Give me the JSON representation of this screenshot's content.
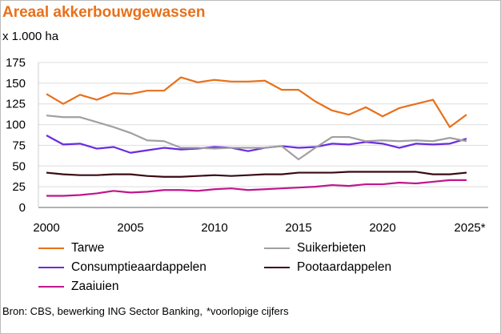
{
  "chart_data": {
    "type": "line",
    "title": "Areaal akkerbouwgewassen",
    "ylabel": "x 1.000 ha",
    "x": [
      2000,
      2001,
      2002,
      2003,
      2004,
      2005,
      2006,
      2007,
      2008,
      2009,
      2010,
      2011,
      2012,
      2013,
      2014,
      2015,
      2016,
      2017,
      2018,
      2019,
      2020,
      2021,
      2022,
      2023,
      2024,
      2025
    ],
    "xticks": [
      "2000",
      "2005",
      "2010",
      "2015",
      "2020",
      "2025*"
    ],
    "yticks": [
      "0",
      "25",
      "50",
      "75",
      "100",
      "125",
      "150",
      "175"
    ],
    "ylim": [
      0,
      175
    ],
    "grid": true,
    "legend_position": "bottom",
    "series": [
      {
        "name": "Tarwe",
        "color": "#E8701A",
        "values": [
          137,
          125,
          136,
          130,
          138,
          137,
          141,
          141,
          157,
          151,
          154,
          152,
          152,
          153,
          142,
          142,
          128,
          117,
          112,
          121,
          110,
          120,
          125,
          130,
          97,
          112
        ]
      },
      {
        "name": "Suikerbieten",
        "color": "#A0A0A0",
        "values": [
          111,
          109,
          109,
          103,
          97,
          90,
          81,
          80,
          72,
          72,
          71,
          72,
          72,
          72,
          74,
          58,
          72,
          85,
          85,
          80,
          81,
          80,
          81,
          80,
          84,
          80
        ]
      },
      {
        "name": "Consumptieaardappelen",
        "color": "#6A2BE0",
        "values": [
          87,
          76,
          77,
          71,
          73,
          66,
          69,
          72,
          70,
          71,
          73,
          72,
          68,
          72,
          74,
          72,
          73,
          77,
          76,
          79,
          77,
          72,
          77,
          76,
          77,
          83
        ]
      },
      {
        "name": "Pootaardappelen",
        "color": "#3A0A14",
        "values": [
          42,
          40,
          39,
          39,
          40,
          40,
          38,
          37,
          37,
          38,
          39,
          38,
          39,
          40,
          40,
          42,
          42,
          42,
          43,
          43,
          43,
          43,
          43,
          40,
          40,
          42
        ]
      },
      {
        "name": "Zaaiuien",
        "color": "#C0168C",
        "values": [
          14,
          14,
          15,
          17,
          20,
          18,
          19,
          21,
          21,
          20,
          22,
          23,
          21,
          22,
          23,
          24,
          25,
          27,
          26,
          28,
          28,
          30,
          29,
          31,
          33,
          33
        ]
      }
    ]
  },
  "source": "Bron: CBS, bewerking ING Sector Banking,",
  "note": "*voorlopige cijfers"
}
